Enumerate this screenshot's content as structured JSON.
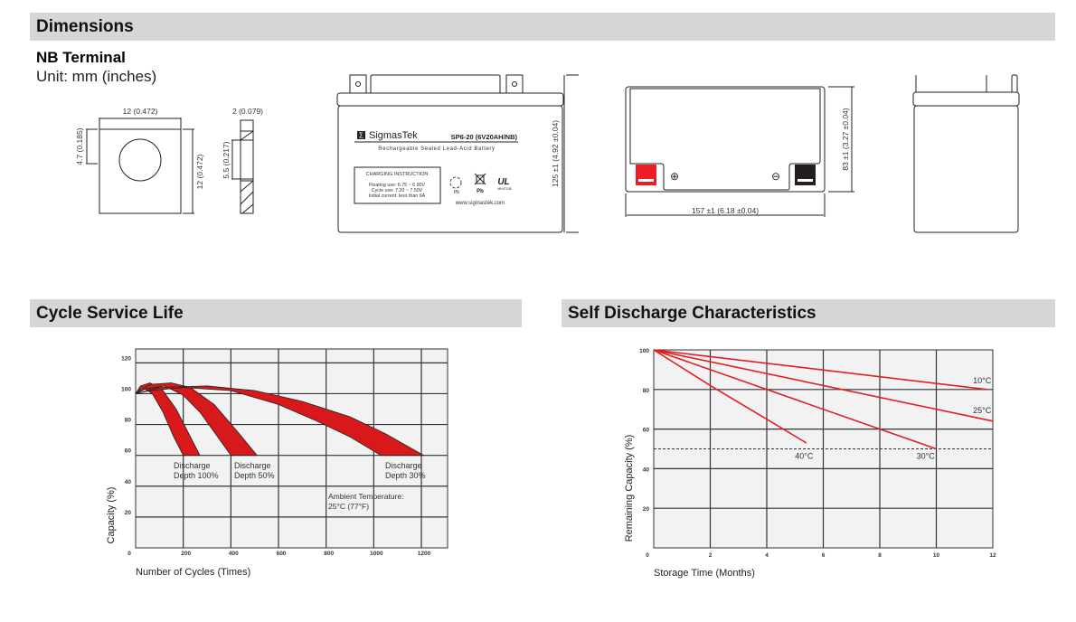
{
  "dimensions": {
    "title": "Dimensions",
    "terminal_title": "NB Terminal",
    "unit": "Unit: mm (inches)",
    "terminal": {
      "width": "12 (0.472)",
      "height": "12 (0.472)",
      "hole_offset": "4.7 (0.185)",
      "thickness": "2 (0.079)",
      "slot": "5.5 (0.217)"
    },
    "front": {
      "brand": "SigmasTek",
      "model": "SP6-20 (6V20AH/NB)",
      "subtitle": "Rechargeable Sealed Lead-Acid Battery",
      "charging_title": "CHARGING INSTRUCTION",
      "charging_lines": [
        "Floating use: 6.75 ~ 6.90V",
        "Cycle use: 7.20 ~ 7.50V",
        "Initial current: less than 6A"
      ],
      "pb1": "Pb",
      "pb2": "Pb",
      "ul_code": "MH47108",
      "website": "www.sigmastek.com",
      "height_dim": "125 ±1 (4.92 ±0.04)"
    },
    "top": {
      "width_dim": "157 ±1 (6.18 ±0.04)",
      "depth_dim": "83 ±1 (3.27 ±0.04)",
      "positive": "⊕",
      "negative": "⊖"
    },
    "colors": {
      "positive_terminal": "#ee1c25",
      "negative_terminal": "#231f20"
    }
  },
  "cycle": {
    "title": "Cycle Service Life",
    "chart_data": {
      "type": "area",
      "xlabel": "Number of Cycles (Times)",
      "ylabel": "Capacity (%)",
      "xlim": [
        0,
        1310
      ],
      "ylim": [
        0,
        129
      ],
      "xticks": [
        "0",
        "200",
        "400",
        "600",
        "800",
        "1000",
        "1200"
      ],
      "yticks": [
        "20",
        "40",
        "60",
        "80",
        "100",
        "120"
      ],
      "grid": true,
      "color": "#d7191c",
      "series": [
        {
          "name": "Discharge Depth 100%",
          "label1": "Discharge",
          "label2": "Depth 100%",
          "outer": [
            [
              0,
              100
            ],
            [
              20,
              105
            ],
            [
              60,
              107
            ],
            [
              110,
              103
            ],
            [
              170,
              90
            ],
            [
              230,
              72
            ],
            [
              270,
              60
            ]
          ],
          "inner": [
            [
              200,
              60
            ],
            [
              160,
              72
            ],
            [
              115,
              88
            ],
            [
              70,
              100
            ],
            [
              30,
              104
            ],
            [
              0,
              100
            ]
          ]
        },
        {
          "name": "Discharge Depth 50%",
          "label1": "Discharge",
          "label2": "Depth 50%",
          "outer": [
            [
              0,
              100
            ],
            [
              60,
              106
            ],
            [
              150,
              107
            ],
            [
              230,
              104
            ],
            [
              330,
              93
            ],
            [
              430,
              75
            ],
            [
              510,
              60
            ]
          ],
          "inner": [
            [
              400,
              60
            ],
            [
              340,
              73
            ],
            [
              270,
              88
            ],
            [
              200,
              99
            ],
            [
              120,
              105
            ],
            [
              40,
              103
            ],
            [
              0,
              100
            ]
          ]
        },
        {
          "name": "Discharge Depth 30%",
          "label1": "Discharge",
          "label2": "Depth 30%",
          "outer": [
            [
              0,
              100
            ],
            [
              100,
              104
            ],
            [
              300,
              105
            ],
            [
              500,
              102
            ],
            [
              700,
              95
            ],
            [
              900,
              85
            ],
            [
              1050,
              74
            ],
            [
              1210,
              60
            ]
          ],
          "inner": [
            [
              1030,
              60
            ],
            [
              900,
              72
            ],
            [
              750,
              83
            ],
            [
              600,
              93
            ],
            [
              400,
              102
            ],
            [
              200,
              104
            ],
            [
              60,
              102
            ],
            [
              0,
              100
            ]
          ]
        }
      ],
      "annotation": [
        "Ambient Temperature:",
        "25°C (77°F)"
      ]
    }
  },
  "self_discharge": {
    "title": "Self Discharge Characteristics",
    "chart_data": {
      "type": "line",
      "xlabel": "Storage Time (Months)",
      "ylabel": "Remaining Capacity (%)",
      "xlim": [
        0,
        12
      ],
      "ylim": [
        0,
        100
      ],
      "xticks": [
        "0",
        "2",
        "4",
        "6",
        "8",
        "10",
        "12"
      ],
      "yticks": [
        "20",
        "40",
        "60",
        "80",
        "100"
      ],
      "grid": true,
      "reference_line": 50,
      "color": "#e31e24",
      "series": [
        {
          "name": "10°C",
          "x": [
            0,
            11.8
          ],
          "y": [
            100,
            80
          ]
        },
        {
          "name": "25°C",
          "x": [
            0,
            12
          ],
          "y": [
            100,
            64
          ]
        },
        {
          "name": "30°C",
          "x": [
            0,
            4,
            8,
            10
          ],
          "y": [
            100,
            80,
            60,
            50
          ]
        },
        {
          "name": "40°C",
          "x": [
            0,
            2,
            4,
            5.4
          ],
          "y": [
            100,
            82,
            65,
            53
          ]
        }
      ]
    }
  }
}
